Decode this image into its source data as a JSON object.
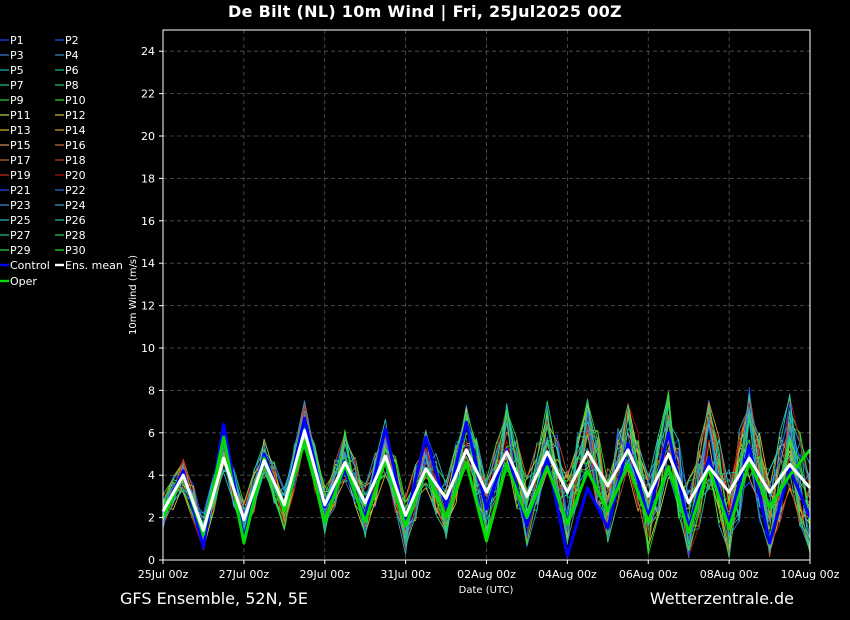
{
  "header": {
    "title": "De Bilt  (NL)  10m Wind | Fri, 25Jul2025 00Z"
  },
  "footer": {
    "left": "GFS Ensemble, 52N, 5E",
    "right": "Wetterzentrale.de"
  },
  "chart_data": {
    "type": "line",
    "title": "De Bilt  (NL)  10m Wind | Fri, 25Jul2025 00Z",
    "xlabel": "Date (UTC)",
    "ylabel": "10m Wind (m/s)",
    "ylim": [
      0,
      25
    ],
    "yticks": [
      0,
      2,
      4,
      6,
      8,
      10,
      12,
      14,
      16,
      18,
      20,
      22,
      24
    ],
    "xlim": [
      "25Jul 00z",
      "10Aug 00z"
    ],
    "xticks": [
      "25Jul 00z",
      "27Jul 00z",
      "29Jul 00z",
      "31Jul 00z",
      "02Aug 00z",
      "04Aug 00z",
      "06Aug 00z",
      "08Aug 00z",
      "10Aug 00z"
    ],
    "grid": true,
    "legend": "left, outside plot, two columns",
    "colors": {
      "background": "#000000",
      "control": "#0000ff",
      "oper": "#00dd00",
      "mean": "#ffffff",
      "grid": "#555555"
    },
    "members": [
      {
        "name": "P1",
        "color": "#1f3fff"
      },
      {
        "name": "P2",
        "color": "#2255ff"
      },
      {
        "name": "P3",
        "color": "#3a7fd5"
      },
      {
        "name": "P4",
        "color": "#3a8fc8"
      },
      {
        "name": "P5",
        "color": "#1fb0c8"
      },
      {
        "name": "P6",
        "color": "#20c0a0"
      },
      {
        "name": "P7",
        "color": "#22c890"
      },
      {
        "name": "P8",
        "color": "#30c870"
      },
      {
        "name": "P9",
        "color": "#2ed040"
      },
      {
        "name": "P10",
        "color": "#33e020"
      },
      {
        "name": "P11",
        "color": "#c8d040"
      },
      {
        "name": "P12",
        "color": "#d0c030"
      },
      {
        "name": "P13",
        "color": "#d8b828"
      },
      {
        "name": "P14",
        "color": "#d8a028"
      },
      {
        "name": "P15",
        "color": "#d89050"
      },
      {
        "name": "P16",
        "color": "#d07040"
      },
      {
        "name": "P17",
        "color": "#d06830"
      },
      {
        "name": "P18",
        "color": "#c84030"
      },
      {
        "name": "P19",
        "color": "#c83020"
      },
      {
        "name": "P20",
        "color": "#b01010"
      },
      {
        "name": "P21",
        "color": "#2050ff"
      },
      {
        "name": "P22",
        "color": "#2f70d8"
      },
      {
        "name": "P23",
        "color": "#3a90d8"
      },
      {
        "name": "P24",
        "color": "#40a0c8"
      },
      {
        "name": "P25",
        "color": "#28c0c0"
      },
      {
        "name": "P26",
        "color": "#20c8a8"
      },
      {
        "name": "P27",
        "color": "#28c880"
      },
      {
        "name": "P28",
        "color": "#30d060"
      },
      {
        "name": "P29",
        "color": "#30d840"
      },
      {
        "name": "P30",
        "color": "#33e820"
      }
    ],
    "legend_extra": [
      {
        "name": "Control",
        "color": "#0000ff"
      },
      {
        "name": "Ens. mean",
        "color": "#ffffff"
      },
      {
        "name": "Oper",
        "color": "#00dd00"
      }
    ],
    "series_mean": {
      "name": "Ens. mean",
      "hours": [
        0,
        12,
        24,
        36,
        48,
        60,
        72,
        84,
        96,
        108,
        120,
        132,
        144,
        156,
        168,
        180,
        192,
        204,
        216,
        228,
        240,
        252,
        264,
        276,
        288,
        300,
        312,
        324,
        336,
        348,
        360,
        372,
        384
      ],
      "values": [
        2.3,
        4.0,
        1.4,
        4.8,
        1.9,
        4.7,
        2.6,
        6.1,
        2.6,
        4.6,
        2.7,
        4.9,
        2.1,
        4.3,
        2.9,
        5.2,
        3.2,
        5.1,
        3.0,
        5.1,
        3.2,
        5.1,
        3.5,
        5.2,
        3.0,
        5.0,
        2.7,
        4.4,
        3.2,
        4.8,
        3.2,
        4.5,
        3.4
      ]
    },
    "series_control": {
      "name": "Control",
      "hours": [
        0,
        12,
        24,
        36,
        48,
        60,
        72,
        84,
        96,
        108,
        120,
        132,
        144,
        156,
        168,
        180,
        192,
        204,
        216,
        228,
        240,
        252,
        264,
        276,
        288,
        300,
        312,
        324,
        336,
        348,
        360,
        372,
        384
      ],
      "values": [
        2.2,
        4.2,
        0.6,
        6.4,
        1.0,
        5.0,
        2.4,
        6.7,
        2.5,
        4.2,
        2.0,
        6.2,
        1.8,
        5.8,
        2.5,
        6.5,
        2.4,
        5.2,
        1.6,
        4.8,
        0.2,
        3.4,
        1.5,
        5.5,
        2.0,
        6.0,
        1.5,
        4.8,
        1.8,
        5.4,
        0.8,
        4.3,
        2.0
      ]
    },
    "series_oper": {
      "name": "Oper",
      "hours": [
        0,
        12,
        24,
        36,
        48,
        60,
        72,
        84,
        96,
        108,
        120,
        132,
        144,
        156,
        168,
        180,
        192,
        204,
        216,
        228,
        240,
        252,
        264,
        276,
        288,
        300,
        312,
        324,
        336,
        348,
        360,
        372,
        384
      ],
      "values": [
        2.0,
        4.0,
        1.2,
        5.8,
        0.8,
        4.8,
        2.3,
        5.6,
        1.8,
        4.5,
        1.8,
        4.7,
        1.6,
        4.3,
        2.0,
        4.6,
        0.9,
        4.5,
        2.0,
        4.4,
        1.7,
        4.2,
        2.3,
        4.5,
        1.8,
        4.4,
        1.3,
        4.4,
        1.5,
        4.6,
        2.5,
        4.0,
        5.2
      ]
    }
  }
}
